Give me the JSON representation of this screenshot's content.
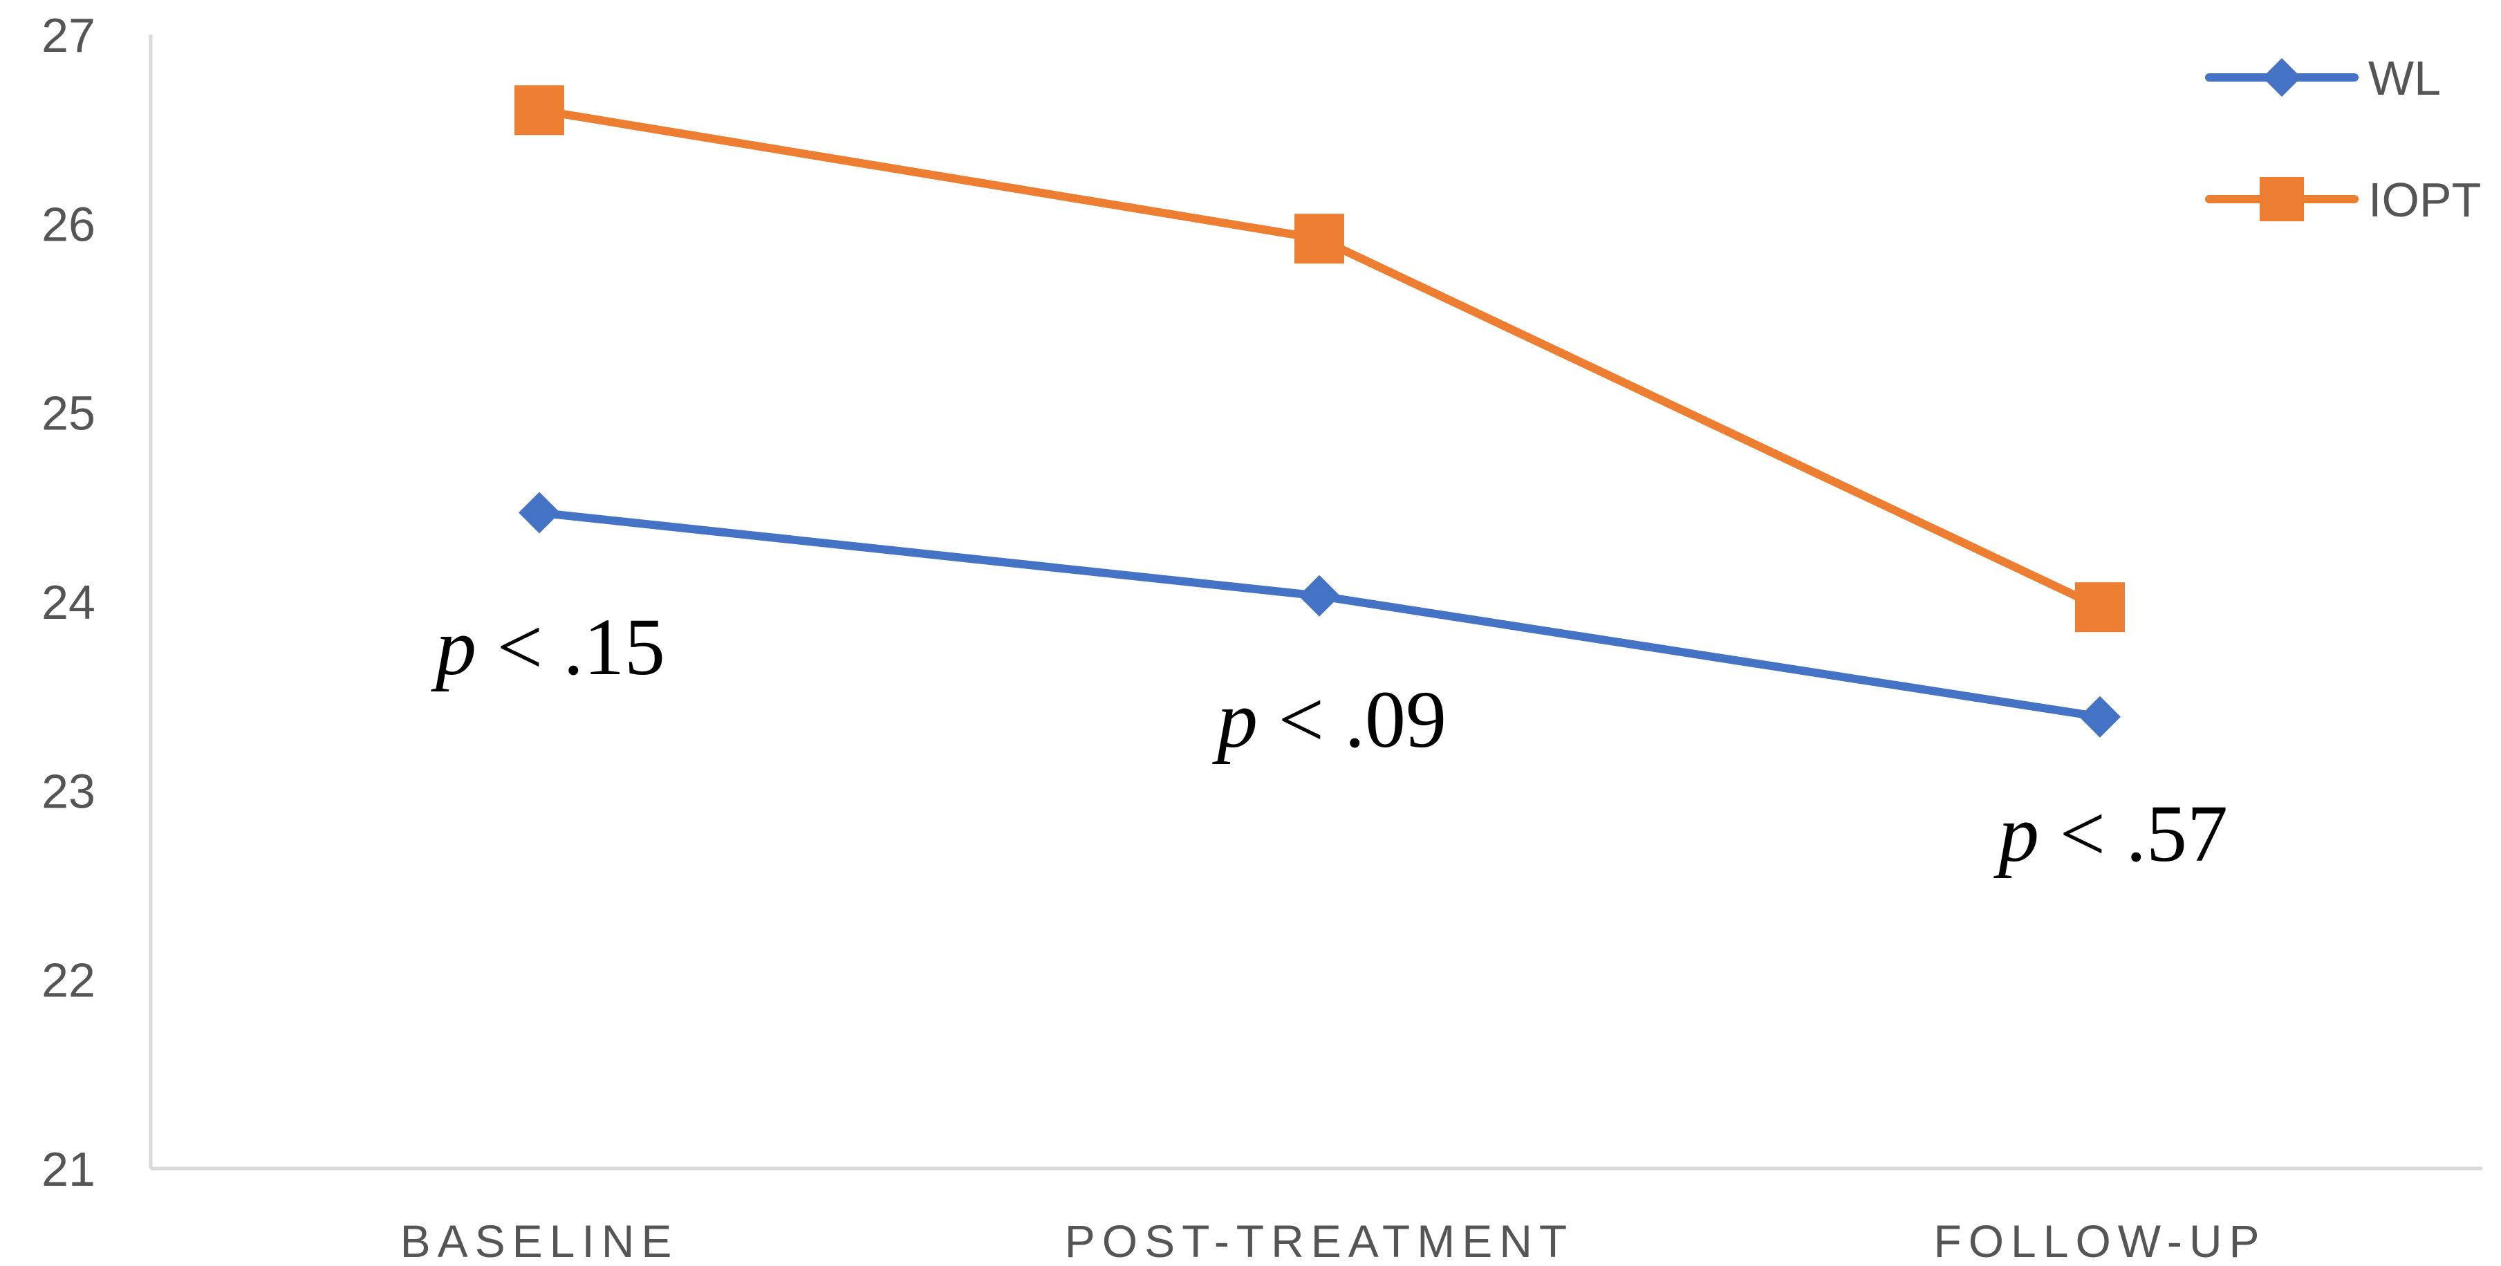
{
  "chart_data": {
    "type": "line",
    "title": "",
    "xlabel": "",
    "ylabel": "",
    "categories": [
      "BASELINE",
      "POST-TREATMENT",
      "FOLLOW-UP"
    ],
    "ylim": [
      21,
      27
    ],
    "yticks": [
      21,
      22,
      23,
      24,
      25,
      26,
      27
    ],
    "grid": false,
    "legend_position": "top-right",
    "series": [
      {
        "name": "WL",
        "values": [
          24.47,
          24.03,
          23.39
        ],
        "color": "#4472C4",
        "marker": "diamond"
      },
      {
        "name": "IOPT",
        "values": [
          26.6,
          25.92,
          23.97
        ],
        "color": "#ED7D31",
        "marker": "square"
      }
    ],
    "annotations": [
      {
        "category": "BASELINE",
        "p": "p",
        "text": " < .15"
      },
      {
        "category": "POST-TREATMENT",
        "p": "p",
        "text": " < .09"
      },
      {
        "category": "FOLLOW-UP",
        "p": "p",
        "text": " < .57"
      }
    ]
  }
}
